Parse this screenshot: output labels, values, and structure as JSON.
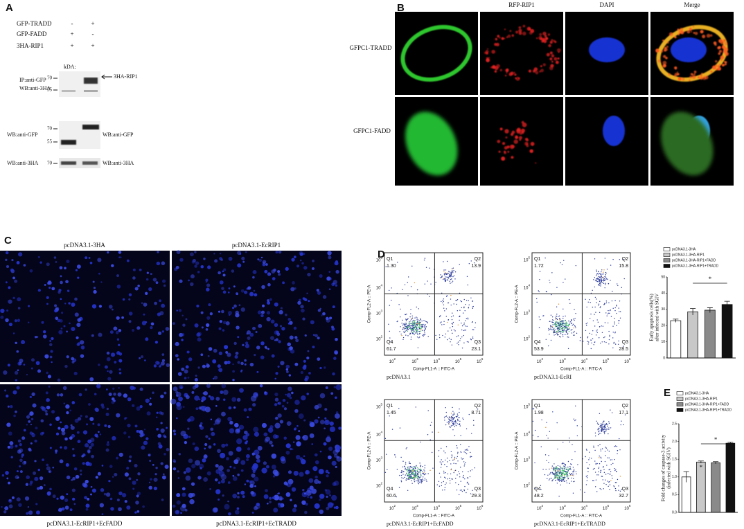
{
  "panel_a": {
    "label": "A",
    "rows": [
      {
        "name": "GFP-TRADD",
        "signs": [
          "-",
          "+"
        ]
      },
      {
        "name": "GFP-FADD",
        "signs": [
          "+",
          "-"
        ]
      },
      {
        "name": "3HA-RIP1",
        "signs": [
          "+",
          "+"
        ]
      }
    ],
    "kda": "kDA:",
    "blot_ip": {
      "left_labels": [
        "IP:anti-GFP",
        "WB:anti-3HA"
      ],
      "markers": [
        "70",
        "55"
      ],
      "arrow_label": "3HA-RIP1"
    },
    "blot_gfp": {
      "left_label": "WB:anti-GFP",
      "markers": [
        "70",
        "55"
      ],
      "right_label": "WB:anti-GFP"
    },
    "blot_3ha": {
      "left_label": "WB:anti-3HA",
      "marker": "70",
      "right_label": "WB:anti-3HA"
    }
  },
  "panel_b": {
    "label": "B",
    "columns": [
      "RFP-RIP1",
      "DAPI",
      "Merge"
    ],
    "rows": [
      "GFPC1-TRADD",
      "GFPC1-FADD"
    ]
  },
  "panel_c": {
    "label": "C",
    "images": [
      "pcDNA3.1-3HA",
      "pcDNA3.1-EcRIP1",
      "pcDNA3.1-EcRIP1+EcFADD",
      "pcDNA3.1-EcRIP1+EcTRADD"
    ]
  },
  "panel_d": {
    "label": "D",
    "flow": {
      "y_axis": "Comp-FL2-A :: PE-A",
      "x_axis": "Comp-FL1-A :: FITC-A",
      "x_ticks": [
        {
          "base": "10",
          "exp": "2"
        },
        {
          "base": "10",
          "exp": "3"
        },
        {
          "base": "10",
          "exp": "4"
        },
        {
          "base": "10",
          "exp": "5"
        },
        {
          "base": "10",
          "exp": "6"
        }
      ],
      "y_ticks": [
        {
          "base": "10",
          "exp": "2"
        },
        {
          "base": "10",
          "exp": "3"
        },
        {
          "base": "10",
          "exp": "4"
        },
        {
          "base": "10",
          "exp": "5"
        }
      ],
      "plots": [
        {
          "caption": "pcDNA3.1",
          "quadrants": [
            {
              "name": "Q1",
              "value": "1.30"
            },
            {
              "name": "Q2",
              "value": "13.9"
            },
            {
              "name": "Q3",
              "value": "23.1"
            },
            {
              "name": "Q4",
              "value": "61.7"
            }
          ]
        },
        {
          "caption": "pcDNA3.1-EcRI",
          "quadrants": [
            {
              "name": "Q1",
              "value": "1.72"
            },
            {
              "name": "Q2",
              "value": "15.8"
            },
            {
              "name": "Q3",
              "value": "28.5"
            },
            {
              "name": "Q4",
              "value": "53.9"
            }
          ]
        },
        {
          "caption": "pcDNA3.1-EcRIP1+EcFADD",
          "quadrants": [
            {
              "name": "Q1",
              "value": "1.45"
            },
            {
              "name": "Q2",
              "value": "8.71"
            },
            {
              "name": "Q3",
              "value": "29.3"
            },
            {
              "name": "Q4",
              "value": "60.6"
            }
          ]
        },
        {
          "caption": "pcDNA3.1-EcRIP1+EcTRADD",
          "quadrants": [
            {
              "name": "Q1",
              "value": "1.98"
            },
            {
              "name": "Q2",
              "value": "17.1"
            },
            {
              "name": "Q3",
              "value": "32.7"
            },
            {
              "name": "Q4",
              "value": "48.2"
            }
          ]
        }
      ]
    },
    "chart": {
      "type": "bar",
      "y_label": [
        "Early apoptosis cells(%)",
        "after infected with SGIV"
      ],
      "series": [
        {
          "name": "pcDNA3.1-3HA",
          "color": "#ffffff",
          "value": 23,
          "error": 1
        },
        {
          "name": "pcDNA3.1-3HA-RIP1",
          "color": "#c8c8c8",
          "value": 28.5,
          "error": 2
        },
        {
          "name": "pcDNA3.1-3HA-RIP1+FADD",
          "color": "#8a8a8a",
          "value": 29.5,
          "error": 1.5
        },
        {
          "name": "pcDNA3.1-3HA-RIP1+TRADD",
          "color": "#111111",
          "value": 33,
          "error": 2
        }
      ],
      "ylim": [
        0,
        50
      ],
      "yticks": [
        0,
        10,
        20,
        30,
        40,
        50
      ],
      "annotations": [
        "*"
      ]
    }
  },
  "panel_e": {
    "label": "E",
    "chart": {
      "type": "bar",
      "y_label": [
        "Fold changes of caspase-3 activity",
        "(infected with SGIV)"
      ],
      "series": [
        {
          "name": "pcDNA3.1-3HA",
          "color": "#ffffff",
          "value": 1.0,
          "error": 0.15
        },
        {
          "name": "pcDNA3.1-3HA-RIP1",
          "color": "#c8c8c8",
          "value": 1.42,
          "error": 0.03
        },
        {
          "name": "pcDNA3.1-3HA-RIP1+FADD",
          "color": "#8a8a8a",
          "value": 1.4,
          "error": 0.03
        },
        {
          "name": "pcDNA3.1-3HA-RIP1+TRADD",
          "color": "#111111",
          "value": 1.95,
          "error": 0.03
        }
      ],
      "ylim": [
        0,
        2.5
      ],
      "yticks": [
        {
          "value": 0,
          "label": "0.0"
        },
        0.5,
        {
          "value": 1,
          "label": "1.0"
        },
        1.5,
        {
          "value": 2,
          "label": "2.0"
        },
        2.5
      ],
      "annotations": [
        "*",
        "*"
      ]
    }
  }
}
